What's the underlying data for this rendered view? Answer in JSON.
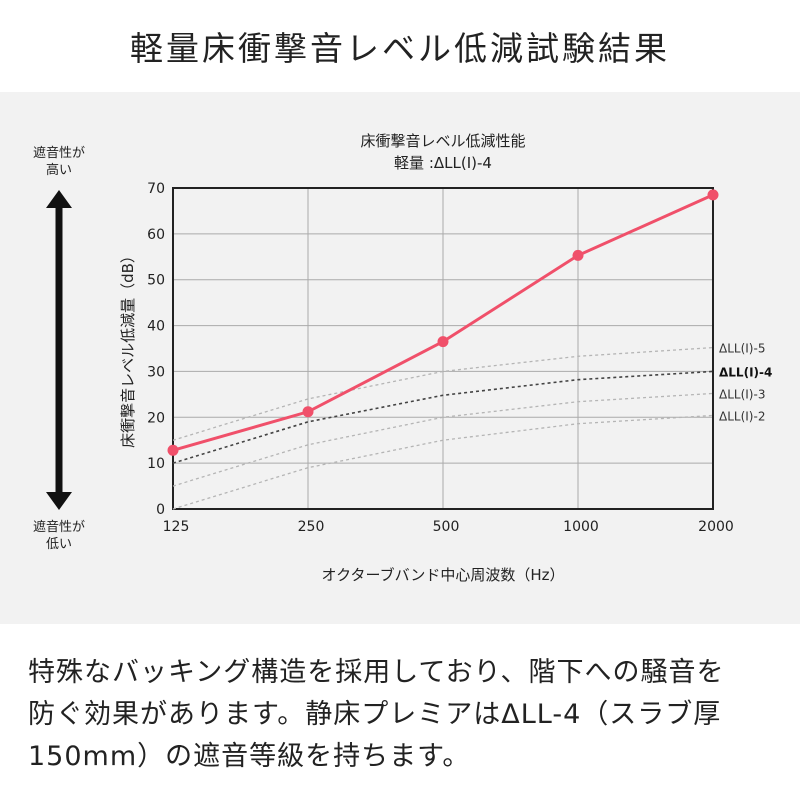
{
  "header": {
    "title": "軽量床衝撃音レベル低減試験結果"
  },
  "side": {
    "top_label_1": "遮音性が",
    "top_label_2": "高い",
    "bottom_label_1": "遮音性が",
    "bottom_label_2": "低い"
  },
  "chart_data": {
    "type": "line",
    "title": "床衝撃音レベル低減性能",
    "subtitle": "軽量 :ΔLL(Ⅰ)-4",
    "xlabel": "オクターブバンド中心周波数（Hz）",
    "ylabel": "床衝撃音レベル低減量（dB）",
    "categories": [
      "125",
      "250",
      "500",
      "1000",
      "2000"
    ],
    "ylim": [
      0,
      70
    ],
    "yticks": [
      "0",
      "10",
      "20",
      "30",
      "40",
      "50",
      "60",
      "70"
    ],
    "grid": true,
    "series": [
      {
        "role": "measured",
        "color": "#f0506a",
        "values": [
          12.8,
          21.2,
          36.5,
          55.3,
          68.5
        ]
      }
    ],
    "reference_curves": [
      {
        "name": "ΔLL(I)-5",
        "color": "#b5b5b5",
        "values": [
          15,
          24,
          30,
          33.3,
          35.2
        ]
      },
      {
        "name": "ΔLL(I)-4",
        "color": "#444444",
        "values": [
          10,
          19,
          24.8,
          28.2,
          30
        ]
      },
      {
        "name": "ΔLL(I)-3",
        "color": "#b5b5b5",
        "values": [
          5,
          14,
          20,
          23.4,
          25.2
        ]
      },
      {
        "name": "ΔLL(I)-2",
        "color": "#b5b5b5",
        "values": [
          0,
          9,
          15,
          18.6,
          20.4
        ]
      }
    ]
  },
  "description": {
    "line1": "特殊なバッキング構造を採用しており、階下への騒音を",
    "line2": "防ぐ効果があります。静床プレミアはΔLL-4（スラブ厚",
    "line3": "150mm）の遮音等級を持ちます。"
  }
}
